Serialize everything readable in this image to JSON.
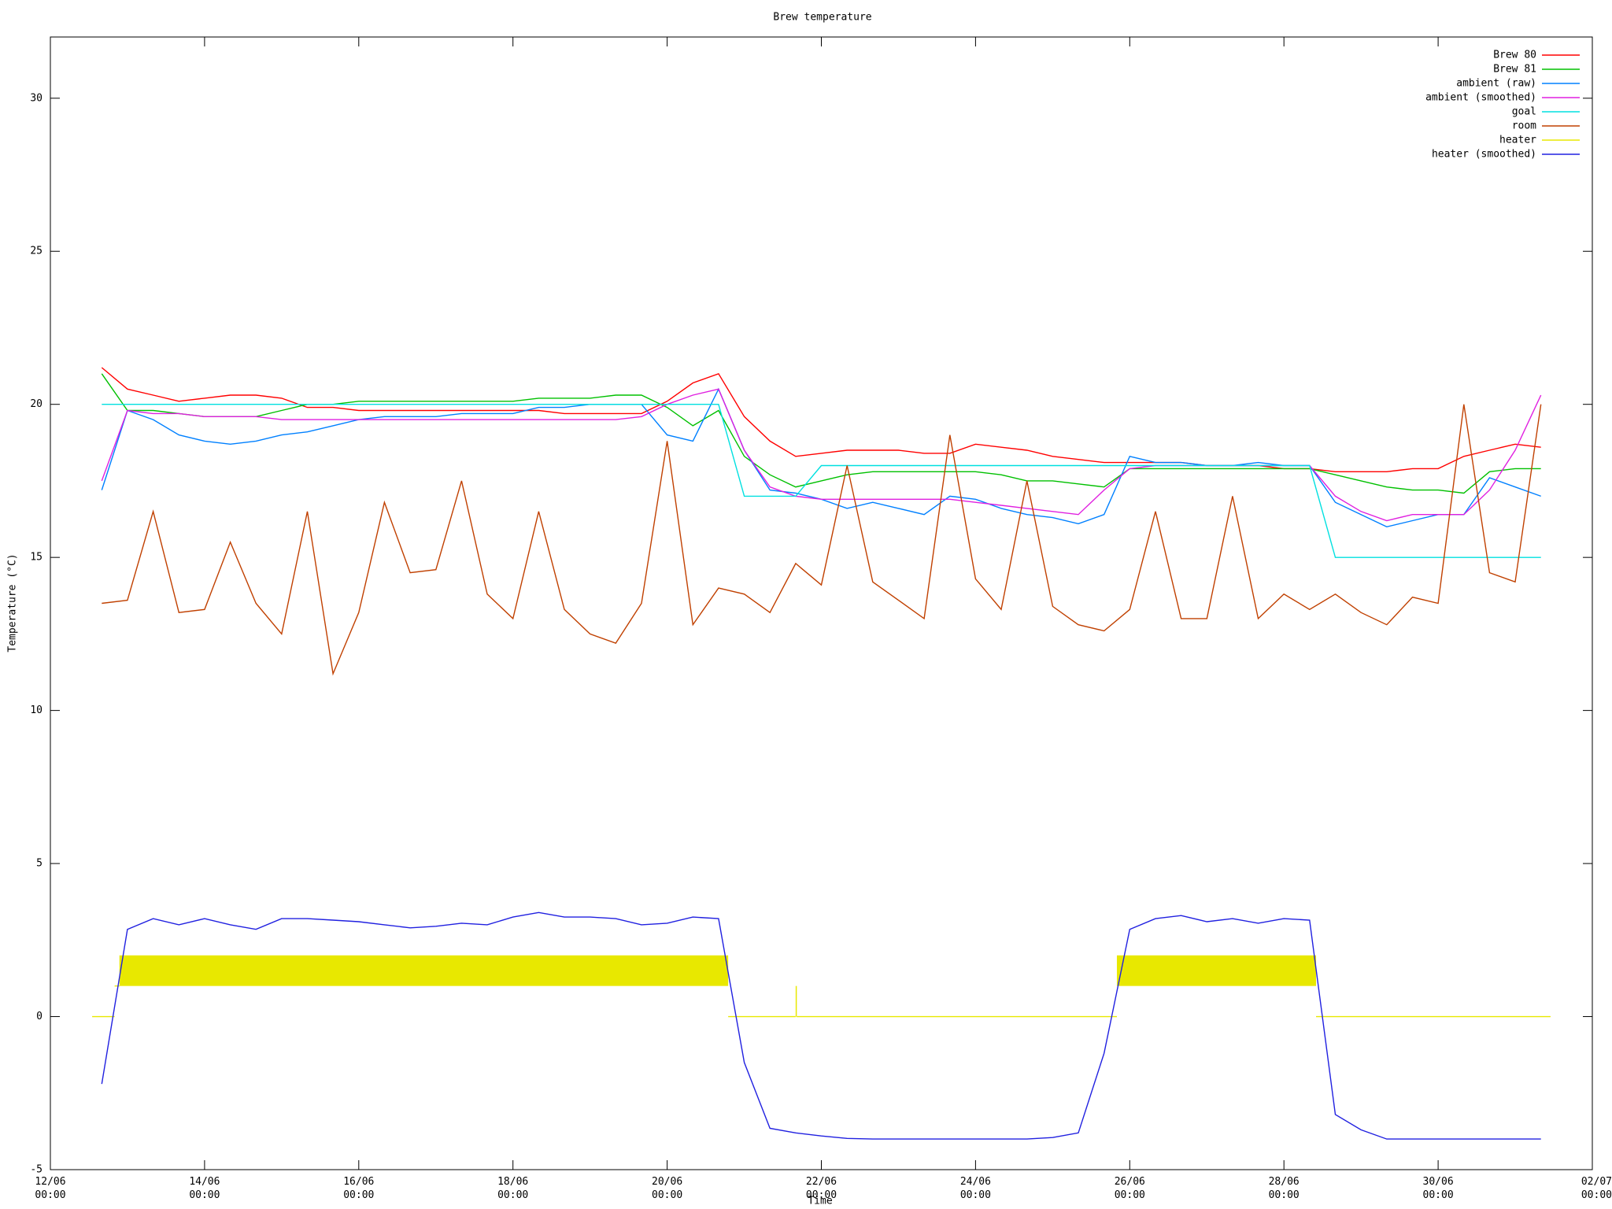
{
  "chart_data": {
    "type": "line",
    "title": "Brew temperature",
    "xlabel": "Time",
    "ylabel": "Temperature (°C)",
    "xlim": [
      "12/06\n00:00",
      "02/07\n00:00"
    ],
    "xticks": [
      "12/06\n00:00",
      "14/06\n00:00",
      "16/06\n00:00",
      "18/06\n00:00",
      "20/06\n00:00",
      "22/06\n00:00",
      "24/06\n00:00",
      "26/06\n00:00",
      "28/06\n00:00",
      "30/06\n00:00",
      "02/07\n00:00"
    ],
    "ylim": [
      -5,
      32
    ],
    "yticks": [
      -5,
      0,
      5,
      10,
      15,
      20,
      25,
      30
    ],
    "legend": "top-right",
    "x": [
      "12/06 16:00",
      "13/06 00:00",
      "13/06 08:00",
      "13/06 16:00",
      "14/06 00:00",
      "14/06 08:00",
      "14/06 16:00",
      "15/06 00:00",
      "15/06 08:00",
      "15/06 16:00",
      "16/06 00:00",
      "16/06 08:00",
      "16/06 16:00",
      "17/06 00:00",
      "17/06 08:00",
      "17/06 16:00",
      "18/06 00:00",
      "18/06 08:00",
      "18/06 16:00",
      "19/06 00:00",
      "19/06 08:00",
      "19/06 16:00",
      "20/06 00:00",
      "20/06 08:00",
      "20/06 16:00",
      "21/06 00:00",
      "21/06 08:00",
      "21/06 16:00",
      "22/06 00:00",
      "22/06 08:00",
      "22/06 16:00",
      "23/06 00:00",
      "23/06 08:00",
      "23/06 16:00",
      "24/06 00:00",
      "24/06 08:00",
      "24/06 16:00",
      "25/06 00:00",
      "25/06 08:00",
      "25/06 16:00",
      "26/06 00:00",
      "26/06 08:00",
      "26/06 16:00",
      "27/06 00:00",
      "27/06 08:00",
      "27/06 16:00",
      "28/06 00:00",
      "28/06 08:00",
      "28/06 16:00",
      "29/06 00:00",
      "29/06 08:00",
      "29/06 16:00",
      "30/06 00:00",
      "30/06 08:00",
      "30/06 16:00",
      "01/07 00:00",
      "01/07 08:00"
    ],
    "series": [
      {
        "name": "Brew 80",
        "color": "#ff0000",
        "values": [
          21.2,
          20.5,
          20.3,
          20.1,
          20.2,
          20.3,
          20.3,
          20.2,
          19.9,
          19.9,
          19.8,
          19.8,
          19.8,
          19.8,
          19.8,
          19.8,
          19.8,
          19.8,
          19.7,
          19.7,
          19.7,
          19.7,
          20.1,
          20.7,
          21.0,
          19.6,
          18.8,
          18.3,
          18.4,
          18.5,
          18.5,
          18.5,
          18.4,
          18.4,
          18.7,
          18.6,
          18.5,
          18.3,
          18.2,
          18.1,
          18.1,
          18.1,
          18.1,
          18.0,
          18.0,
          18.0,
          17.9,
          17.9,
          17.8,
          17.8,
          17.8,
          17.9,
          17.9,
          18.3,
          18.5,
          18.7,
          18.6
        ]
      },
      {
        "name": "Brew 81",
        "color": "#00c000",
        "values": [
          21.0,
          19.8,
          19.8,
          19.7,
          19.6,
          19.6,
          19.6,
          19.8,
          20.0,
          20.0,
          20.1,
          20.1,
          20.1,
          20.1,
          20.1,
          20.1,
          20.1,
          20.2,
          20.2,
          20.2,
          20.3,
          20.3,
          19.9,
          19.3,
          19.8,
          18.3,
          17.7,
          17.3,
          17.5,
          17.7,
          17.8,
          17.8,
          17.8,
          17.8,
          17.8,
          17.7,
          17.5,
          17.5,
          17.4,
          17.3,
          17.9,
          17.9,
          17.9,
          17.9,
          17.9,
          17.9,
          17.9,
          17.9,
          17.7,
          17.5,
          17.3,
          17.2,
          17.2,
          17.1,
          17.8,
          17.9,
          17.9
        ]
      },
      {
        "name": "ambient (raw)",
        "color": "#0080ff",
        "values": [
          17.2,
          19.8,
          19.5,
          19.0,
          18.8,
          18.7,
          18.8,
          19.0,
          19.1,
          19.3,
          19.5,
          19.6,
          19.6,
          19.6,
          19.7,
          19.7,
          19.7,
          19.9,
          19.9,
          20.0,
          20.0,
          20.0,
          19.0,
          18.8,
          20.5,
          18.5,
          17.2,
          17.1,
          16.9,
          16.6,
          16.8,
          16.6,
          16.4,
          17.0,
          16.9,
          16.6,
          16.4,
          16.3,
          16.1,
          16.4,
          18.3,
          18.1,
          18.1,
          18.0,
          18.0,
          18.1,
          18.0,
          18.0,
          16.8,
          16.4,
          16.0,
          16.2,
          16.4,
          16.4,
          17.6,
          17.3,
          17.0
        ]
      },
      {
        "name": "ambient (smoothed)",
        "color": "#e020e0",
        "values": [
          17.5,
          19.8,
          19.7,
          19.7,
          19.6,
          19.6,
          19.6,
          19.5,
          19.5,
          19.5,
          19.5,
          19.5,
          19.5,
          19.5,
          19.5,
          19.5,
          19.5,
          19.5,
          19.5,
          19.5,
          19.5,
          19.6,
          20.0,
          20.3,
          20.5,
          18.5,
          17.3,
          17.0,
          16.9,
          16.9,
          16.9,
          16.9,
          16.9,
          16.9,
          16.8,
          16.7,
          16.6,
          16.5,
          16.4,
          17.2,
          17.9,
          18.0,
          18.0,
          18.0,
          18.0,
          18.0,
          18.0,
          18.0,
          17.0,
          16.5,
          16.2,
          16.4,
          16.4,
          16.4,
          17.2,
          18.5,
          20.3
        ]
      },
      {
        "name": "goal",
        "color": "#00e0e0",
        "values": [
          20,
          20,
          20,
          20,
          20,
          20,
          20,
          20,
          20,
          20,
          20,
          20,
          20,
          20,
          20,
          20,
          20,
          20,
          20,
          20,
          20,
          20,
          20,
          20,
          20,
          17,
          17,
          17,
          18,
          18,
          18,
          18,
          18,
          18,
          18,
          18,
          18,
          18,
          18,
          18,
          18,
          18,
          18,
          18,
          18,
          18,
          18,
          18,
          15,
          15,
          15,
          15,
          15,
          15,
          15,
          15,
          15
        ]
      },
      {
        "name": "room",
        "color": "#c04000",
        "values": [
          13.5,
          13.6,
          16.5,
          13.2,
          13.3,
          15.5,
          13.5,
          12.5,
          16.5,
          11.2,
          13.2,
          16.8,
          14.5,
          14.6,
          17.5,
          13.8,
          13.0,
          16.5,
          13.3,
          12.5,
          12.2,
          13.5,
          18.8,
          12.8,
          14.0,
          13.8,
          13.2,
          14.8,
          14.1,
          18.0,
          14.2,
          13.6,
          13.0,
          19.0,
          14.3,
          13.3,
          17.5,
          13.4,
          12.8,
          12.6,
          13.3,
          16.5,
          13.0,
          13.0,
          17.0,
          13.0,
          13.8,
          13.3,
          13.8,
          13.2,
          12.8,
          13.7,
          13.5,
          20.0,
          14.5,
          14.2,
          20.0
        ]
      },
      {
        "name": "heater",
        "color": "#e8e800",
        "x": [
          "12/06 13:00",
          "12/06 20:00",
          "12/06 21:30",
          "20/06 19:00",
          "21/06 16:00",
          "21/06 16:20",
          "25/06 20:00",
          "28/06 10:00",
          "01/07 11:00"
        ],
        "values": [
          [
            0,
            0
          ],
          [
            1,
            1
          ],
          [
            1,
            2
          ],
          [
            0,
            0
          ],
          [
            0,
            1
          ],
          [
            0,
            0
          ],
          [
            1,
            2
          ],
          [
            0,
            0
          ],
          [
            0,
            0
          ]
        ]
      },
      {
        "name": "heater (smoothed)",
        "color": "#2020e0",
        "values": [
          -2.2,
          2.85,
          3.2,
          3.0,
          3.2,
          3.0,
          2.85,
          3.2,
          3.2,
          3.15,
          3.1,
          3.0,
          2.9,
          2.95,
          3.05,
          3.0,
          3.25,
          3.4,
          3.25,
          3.25,
          3.2,
          3.0,
          3.05,
          3.25,
          3.2,
          -1.5,
          -3.65,
          -3.8,
          -3.9,
          -3.98,
          -4,
          -4,
          -4,
          -4,
          -4,
          -4,
          -4,
          -3.95,
          -3.8,
          -1.2,
          2.85,
          3.2,
          3.3,
          3.1,
          3.2,
          3.05,
          3.2,
          3.15,
          -3.2,
          -3.7,
          -4,
          -4,
          -4,
          -4,
          -4,
          -4,
          -4
        ]
      }
    ]
  }
}
